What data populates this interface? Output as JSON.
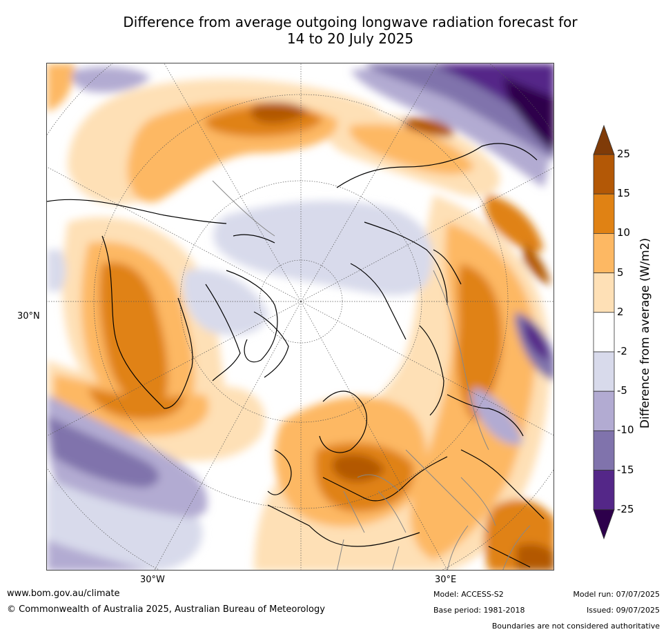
{
  "title": {
    "line1": "Difference from average outgoing longwave radiation forecast for",
    "line2": "14 to 20 July 2025"
  },
  "map": {
    "lat_label": "30°N",
    "lon_labels": [
      "30°W",
      "30°E"
    ]
  },
  "colorbar": {
    "label": "Difference from average (W/m2)",
    "ticks": [
      "25",
      "15",
      "10",
      "5",
      "2",
      "-2",
      "-5",
      "-10",
      "-15",
      "-25"
    ],
    "colors": [
      "#7f3b08",
      "#b35806",
      "#e08214",
      "#fdb863",
      "#fee0b6",
      "#ffffff",
      "#d8daeb",
      "#b2abd2",
      "#8073ac",
      "#542788",
      "#2d004b"
    ]
  },
  "footer": {
    "website": "www.bom.gov.au/climate",
    "copyright": "© Commonwealth of Australia 2025, Australian Bureau of Meteorology",
    "model": "Model: ACCESS-S2",
    "base_period": "Base period: 1981-2018",
    "model_run": "Model run: 07/07/2025",
    "issued": "Issued: 09/07/2025",
    "disclaimer": "Boundaries are not considered authoritative"
  }
}
